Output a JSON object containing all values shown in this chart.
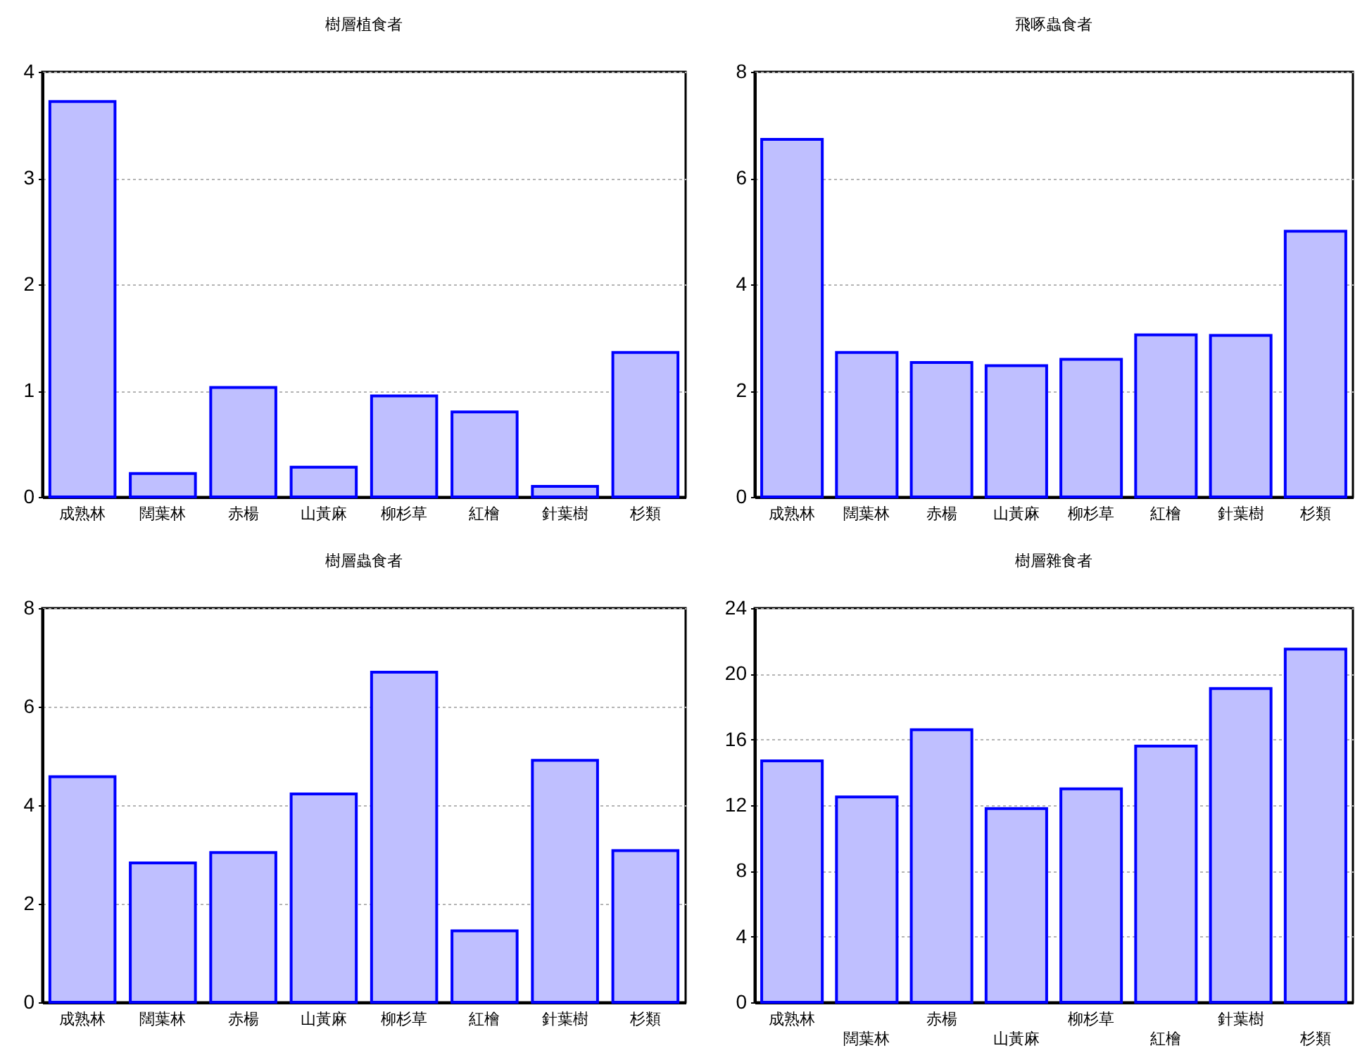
{
  "chart_data": [
    {
      "type": "bar",
      "title": "樹層植食者",
      "categories": [
        "成熟林",
        "闊葉林",
        "赤楊",
        "山黃麻",
        "柳杉草",
        "紅檜",
        "針葉樹",
        "杉類"
      ],
      "values": [
        3.72,
        0.22,
        1.03,
        0.28,
        0.95,
        0.8,
        0.1,
        1.36
      ],
      "color": "#bfbfff",
      "ylim": [
        0,
        4
      ],
      "yticks": [
        0,
        1,
        2,
        3,
        4
      ],
      "grid": "y"
    },
    {
      "type": "bar",
      "title": "飛啄蟲食者",
      "categories": [
        "成熟林",
        "闊葉林",
        "赤楊",
        "山黃麻",
        "柳杉草",
        "紅檜",
        "針葉樹",
        "杉類"
      ],
      "values": [
        6.73,
        2.72,
        2.53,
        2.47,
        2.59,
        3.05,
        3.04,
        5.0
      ],
      "color": "#bfbfff",
      "ylim": [
        0,
        8
      ],
      "yticks": [
        0,
        2,
        4,
        6,
        8
      ],
      "grid": "y"
    },
    {
      "type": "bar",
      "title": "樹層蟲食者",
      "categories": [
        "成熟林",
        "闊葉林",
        "赤楊",
        "山黃麻",
        "柳杉草",
        "紅檜",
        "針葉樹",
        "杉類"
      ],
      "values": [
        4.58,
        2.83,
        3.04,
        4.23,
        6.7,
        1.45,
        4.91,
        3.08
      ],
      "color": "#bfbfff",
      "ylim": [
        0,
        8
      ],
      "yticks": [
        0,
        2,
        4,
        6,
        8
      ],
      "grid": "y"
    },
    {
      "type": "bar",
      "title": "樹層雜食者",
      "categories": [
        "成熟林",
        "闊葉林",
        "赤楊",
        "山黃麻",
        "柳杉草",
        "紅檜",
        "針葉樹",
        "杉類"
      ],
      "values": [
        14.7,
        12.5,
        16.6,
        11.8,
        13.0,
        15.6,
        19.1,
        21.5
      ],
      "color": "#bfbfff",
      "ylim": [
        0,
        24
      ],
      "yticks": [
        0,
        4,
        8,
        12,
        16,
        20,
        24
      ],
      "grid": "y"
    }
  ]
}
